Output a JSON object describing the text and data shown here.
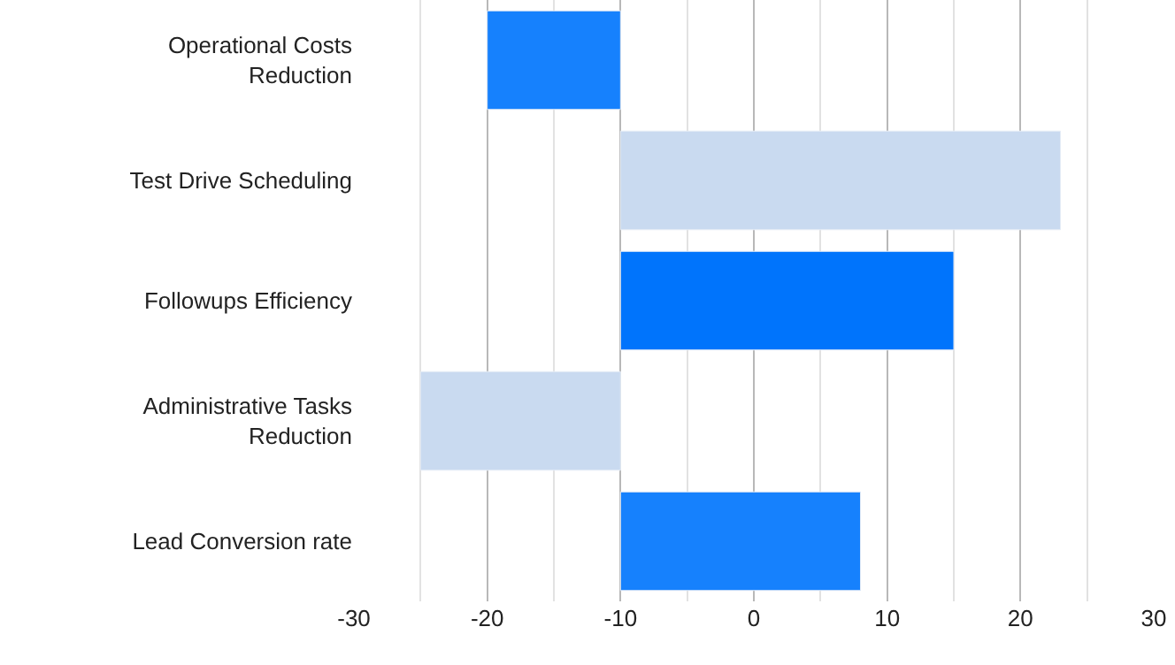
{
  "chart_data": {
    "type": "bar",
    "orientation": "horizontal",
    "categories": [
      "Operational Costs Reduction",
      "Test Drive Scheduling",
      "Followups Efficiency",
      "Administrative Tasks Reduction",
      "Lead Conversion rate"
    ],
    "base": [
      -10,
      -10,
      -10,
      -10,
      -10
    ],
    "values": [
      -10,
      33,
      25,
      -15,
      18
    ],
    "colors": [
      "#1681fd",
      "#c9daf0",
      "#0074fc",
      "#c9daf0",
      "#1681fd"
    ],
    "xlim": [
      -30,
      30
    ],
    "xticks": [
      -30,
      {
        "value": -25,
        "label": null
      },
      -20,
      {
        "value": -15,
        "label": null
      },
      -10,
      {
        "value": -5,
        "label": null
      },
      0,
      {
        "value": 5,
        "label": null
      },
      10,
      {
        "value": 15,
        "label": null
      },
      20,
      {
        "value": 25,
        "label": null
      },
      30
    ],
    "grid": "x"
  }
}
